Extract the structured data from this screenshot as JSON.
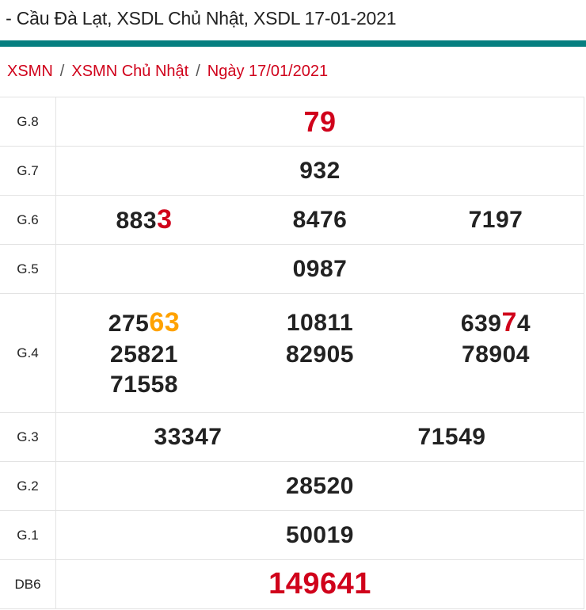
{
  "page_title": "l - Cầu Đà Lạt, XSDL Chủ Nhật, XSDL 17-01-2021",
  "accent_color": "#067f80",
  "breadcrumb": [
    {
      "label": "XSMN"
    },
    {
      "label": "XSMN Chủ Nhật"
    },
    {
      "label": "Ngày 17/01/2021"
    }
  ],
  "breadcrumb_separator": "/",
  "colors": {
    "default": "#222222",
    "red": "#d0021b",
    "orange": "#ffa200"
  },
  "prizes": [
    {
      "label": "G.8",
      "cols": 1,
      "size": "big",
      "numbers": [
        [
          {
            "t": "79",
            "c": "red"
          }
        ]
      ]
    },
    {
      "label": "G.7",
      "cols": 1,
      "numbers": [
        [
          {
            "t": "932"
          }
        ]
      ]
    },
    {
      "label": "G.6",
      "cols": 3,
      "numbers": [
        [
          {
            "t": "883"
          },
          {
            "t": "3",
            "c": "red",
            "big": true
          }
        ],
        [
          {
            "t": "8476"
          }
        ],
        [
          {
            "t": "7197"
          }
        ]
      ]
    },
    {
      "label": "G.5",
      "cols": 1,
      "numbers": [
        [
          {
            "t": "0987"
          }
        ]
      ]
    },
    {
      "label": "G.4",
      "cols": 3,
      "numbers": [
        [
          {
            "t": "275"
          },
          {
            "t": "63",
            "c": "orange",
            "big": true
          }
        ],
        [
          {
            "t": "10811"
          }
        ],
        [
          {
            "t": "639"
          },
          {
            "t": "7",
            "c": "red",
            "big": true
          },
          {
            "t": "4"
          }
        ],
        [
          {
            "t": "25821"
          }
        ],
        [
          {
            "t": "82905"
          }
        ],
        [
          {
            "t": "78904"
          }
        ],
        [
          {
            "t": "71558"
          }
        ]
      ]
    },
    {
      "label": "G.3",
      "cols": 2,
      "numbers": [
        [
          {
            "t": "33347"
          }
        ],
        [
          {
            "t": "71549"
          }
        ]
      ]
    },
    {
      "label": "G.2",
      "cols": 1,
      "numbers": [
        [
          {
            "t": "28520"
          }
        ]
      ]
    },
    {
      "label": "G.1",
      "cols": 1,
      "numbers": [
        [
          {
            "t": "50019"
          }
        ]
      ]
    },
    {
      "label": "DB6",
      "cols": 1,
      "size": "huge",
      "numbers": [
        [
          {
            "t": "149641",
            "c": "red"
          }
        ]
      ]
    }
  ]
}
